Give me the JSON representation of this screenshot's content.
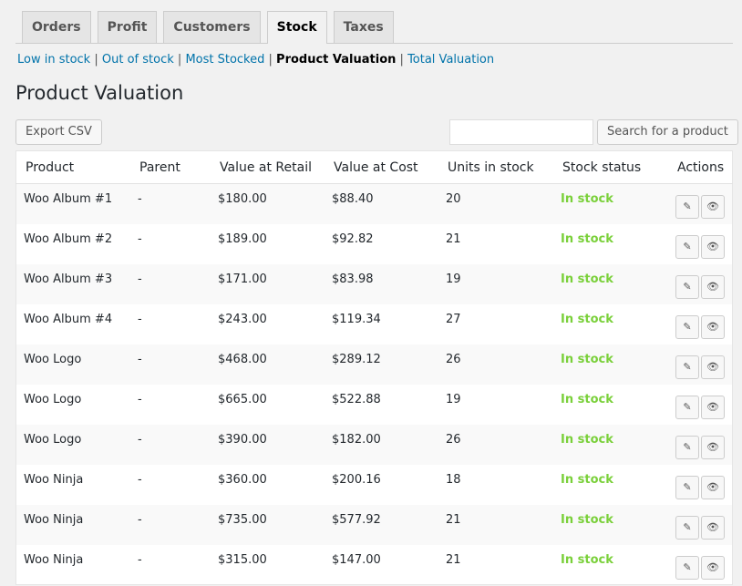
{
  "tabs": [
    "Orders",
    "Profit",
    "Customers",
    "Stock",
    "Taxes"
  ],
  "active_tab": "Stock",
  "subnav": {
    "low": "Low in stock",
    "out": "Out of stock",
    "most": "Most Stocked",
    "current": "Product Valuation",
    "total": "Total Valuation",
    "sep": "|"
  },
  "page_title": "Product Valuation",
  "export_label": "Export CSV",
  "search": {
    "value": "",
    "button": "Search for a product"
  },
  "columns": [
    "Product",
    "Parent",
    "Value at Retail",
    "Value at Cost",
    "Units in stock",
    "Stock status",
    "Actions"
  ],
  "rows": [
    [
      "Woo Album #1",
      "-",
      "$180.00",
      "$88.40",
      "20",
      "In stock"
    ],
    [
      "Woo Album #2",
      "-",
      "$189.00",
      "$92.82",
      "21",
      "In stock"
    ],
    [
      "Woo Album #3",
      "-",
      "$171.00",
      "$83.98",
      "19",
      "In stock"
    ],
    [
      "Woo Album #4",
      "-",
      "$243.00",
      "$119.34",
      "27",
      "In stock"
    ],
    [
      "Woo Logo",
      "-",
      "$468.00",
      "$289.12",
      "26",
      "In stock"
    ],
    [
      "Woo Logo",
      "-",
      "$665.00",
      "$522.88",
      "19",
      "In stock"
    ],
    [
      "Woo Logo",
      "-",
      "$390.00",
      "$182.00",
      "26",
      "In stock"
    ],
    [
      "Woo Ninja",
      "-",
      "$360.00",
      "$200.16",
      "18",
      "In stock"
    ],
    [
      "Woo Ninja",
      "-",
      "$735.00",
      "$577.92",
      "21",
      "In stock"
    ],
    [
      "Woo Ninja",
      "-",
      "$315.00",
      "$147.00",
      "21",
      "In stock"
    ]
  ],
  "colors": {
    "link": "#0073aa",
    "in_stock": "#7ad03a"
  }
}
